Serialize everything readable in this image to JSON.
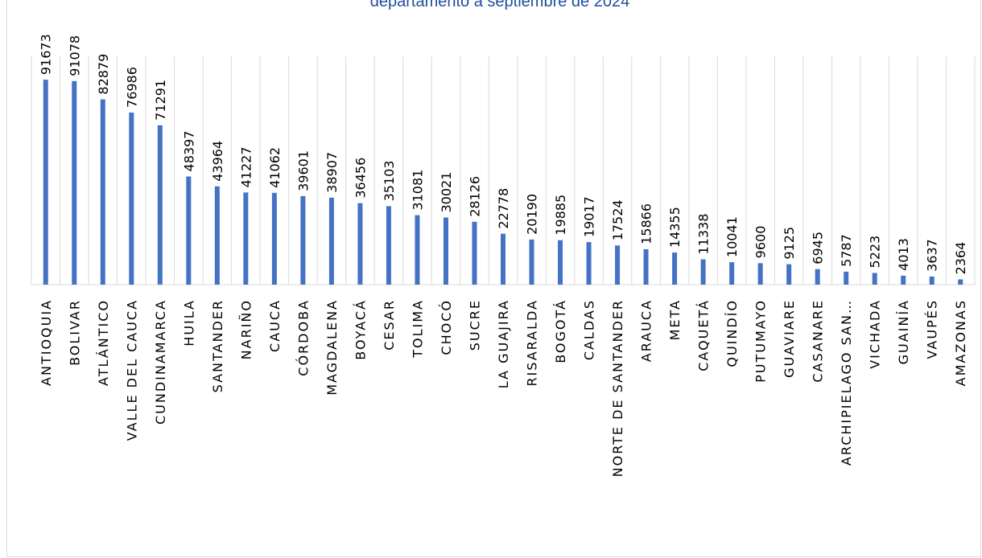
{
  "chart_data": {
    "type": "bar",
    "title": "departamento a septiembre de 2024",
    "xlabel": "",
    "ylabel": "",
    "ylim": [
      0,
      100000
    ],
    "grid": "vertical",
    "legend": "none",
    "colors": {
      "bar": "#4472c4",
      "title": "#1f4e9c",
      "grid": "#d9d9d9"
    },
    "categories": [
      "ANTIOQUIA",
      "BOLIVAR",
      "ATLÁNTICO",
      "VALLE DEL CAUCA",
      "CUNDINAMARCA",
      "HUILA",
      "SANTANDER",
      "NARIÑO",
      "CAUCA",
      "CÓRDOBA",
      "MAGDALENA",
      "BOYACÁ",
      "CESAR",
      "TOLIMA",
      "CHOCÓ",
      "SUCRE",
      "LA GUAJIRA",
      "RISARALDA",
      "BOGOTÁ",
      "CALDAS",
      "NORTE DE SANTANDER",
      "ARAUCA",
      "META",
      "CAQUETÁ",
      "QUINDÍO",
      "PUTUMAYO",
      "GUAVIARE",
      "CASANARE",
      "ARCHIPIELAGO SAN…",
      "VICHADA",
      "GUAINÍA",
      "VAUPÉS",
      "AMAZONAS"
    ],
    "values": [
      91673,
      91078,
      82879,
      76986,
      71291,
      48397,
      43964,
      41227,
      41062,
      39601,
      38907,
      36456,
      35103,
      31081,
      30021,
      28126,
      22778,
      20190,
      19885,
      19017,
      17524,
      15866,
      14355,
      11338,
      10041,
      9600,
      9125,
      6945,
      5787,
      5223,
      4013,
      3637,
      2364
    ]
  }
}
